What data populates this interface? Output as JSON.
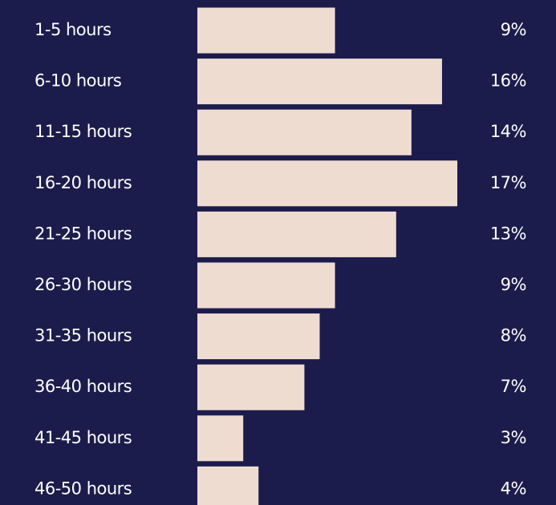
{
  "chart_data": {
    "type": "bar",
    "orientation": "horizontal",
    "categories": [
      "1-5 hours",
      "6-10 hours",
      "11-15 hours",
      "16-20 hours",
      "21-25 hours",
      "26-30 hours",
      "31-35 hours",
      "36-40 hours",
      "41-45 hours",
      "46-50 hours"
    ],
    "values": [
      9,
      16,
      14,
      17,
      13,
      9,
      8,
      7,
      3,
      4
    ],
    "value_labels": [
      "9%",
      "16%",
      "14%",
      "17%",
      "13%",
      "9%",
      "8%",
      "7%",
      "3%",
      "4%"
    ],
    "color": "#efdcd1"
  }
}
